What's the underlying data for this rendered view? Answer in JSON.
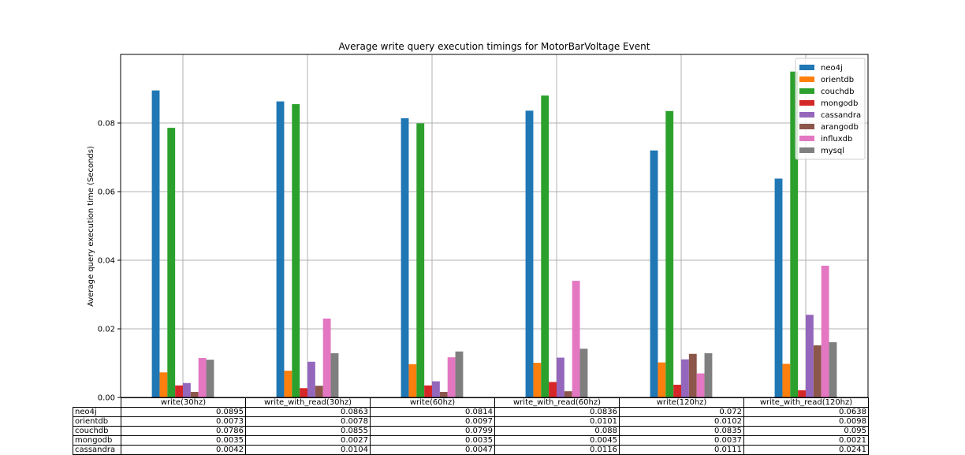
{
  "chart_data": {
    "type": "bar",
    "title": "Average write query execution timings for MotorBarVoltage Event",
    "xlabel": "",
    "ylabel": "Average query execution time (Seconds)",
    "ylim": [
      0,
      0.1
    ],
    "yticks": [
      "0.00",
      "0.02",
      "0.04",
      "0.06",
      "0.08"
    ],
    "grid": true,
    "legend_position": "top-right",
    "categories": [
      "write(30hz)",
      "write_with_read(30hz)",
      "write(60hz)",
      "write_with_read(60hz)",
      "write(120hz)",
      "write_with_read(120hz)"
    ],
    "series": [
      {
        "name": "neo4j",
        "color": "#1f77b4",
        "values": [
          0.0895,
          0.0863,
          0.0814,
          0.0836,
          0.072,
          0.0638
        ]
      },
      {
        "name": "orientdb",
        "color": "#ff7f0e",
        "values": [
          0.0073,
          0.0078,
          0.0097,
          0.0101,
          0.0102,
          0.0098
        ]
      },
      {
        "name": "couchdb",
        "color": "#2ca02c",
        "values": [
          0.0786,
          0.0855,
          0.0799,
          0.088,
          0.0835,
          0.095
        ]
      },
      {
        "name": "mongodb",
        "color": "#d62728",
        "values": [
          0.0035,
          0.0027,
          0.0035,
          0.0045,
          0.0037,
          0.0021
        ]
      },
      {
        "name": "cassandra",
        "color": "#9467bd",
        "values": [
          0.0042,
          0.0104,
          0.0047,
          0.0116,
          0.0111,
          0.0241
        ]
      },
      {
        "name": "arangodb",
        "color": "#8c564b",
        "values": [
          0.0016,
          0.0034,
          0.0016,
          0.0018,
          0.0127,
          0.0152
        ]
      },
      {
        "name": "influxdb",
        "color": "#e377c2",
        "values": [
          0.0115,
          0.023,
          0.0117,
          0.034,
          0.007,
          0.0384
        ]
      },
      {
        "name": "mysql",
        "color": "#7f7f7f",
        "values": [
          0.011,
          0.0129,
          0.0134,
          0.0142,
          0.0129,
          0.0161
        ]
      }
    ],
    "table": {
      "columns": [
        "write(30hz)",
        "write_with_read(30hz)",
        "write(60hz)",
        "write_with_read(60hz)",
        "write(120hz)",
        "write_with_read(120hz)"
      ],
      "rows": [
        {
          "label": "neo4j",
          "cells": [
            "0.0895",
            "0.0863",
            "0.0814",
            "0.0836",
            "0.072",
            "0.0638"
          ]
        },
        {
          "label": "orientdb",
          "cells": [
            "0.0073",
            "0.0078",
            "0.0097",
            "0.0101",
            "0.0102",
            "0.0098"
          ]
        },
        {
          "label": "couchdb",
          "cells": [
            "0.0786",
            "0.0855",
            "0.0799",
            "0.088",
            "0.0835",
            "0.095"
          ]
        },
        {
          "label": "mongodb",
          "cells": [
            "0.0035",
            "0.0027",
            "0.0035",
            "0.0045",
            "0.0037",
            "0.0021"
          ]
        },
        {
          "label": "cassandra",
          "cells": [
            "0.0042",
            "0.0104",
            "0.0047",
            "0.0116",
            "0.0111",
            "0.0241"
          ]
        }
      ]
    }
  }
}
